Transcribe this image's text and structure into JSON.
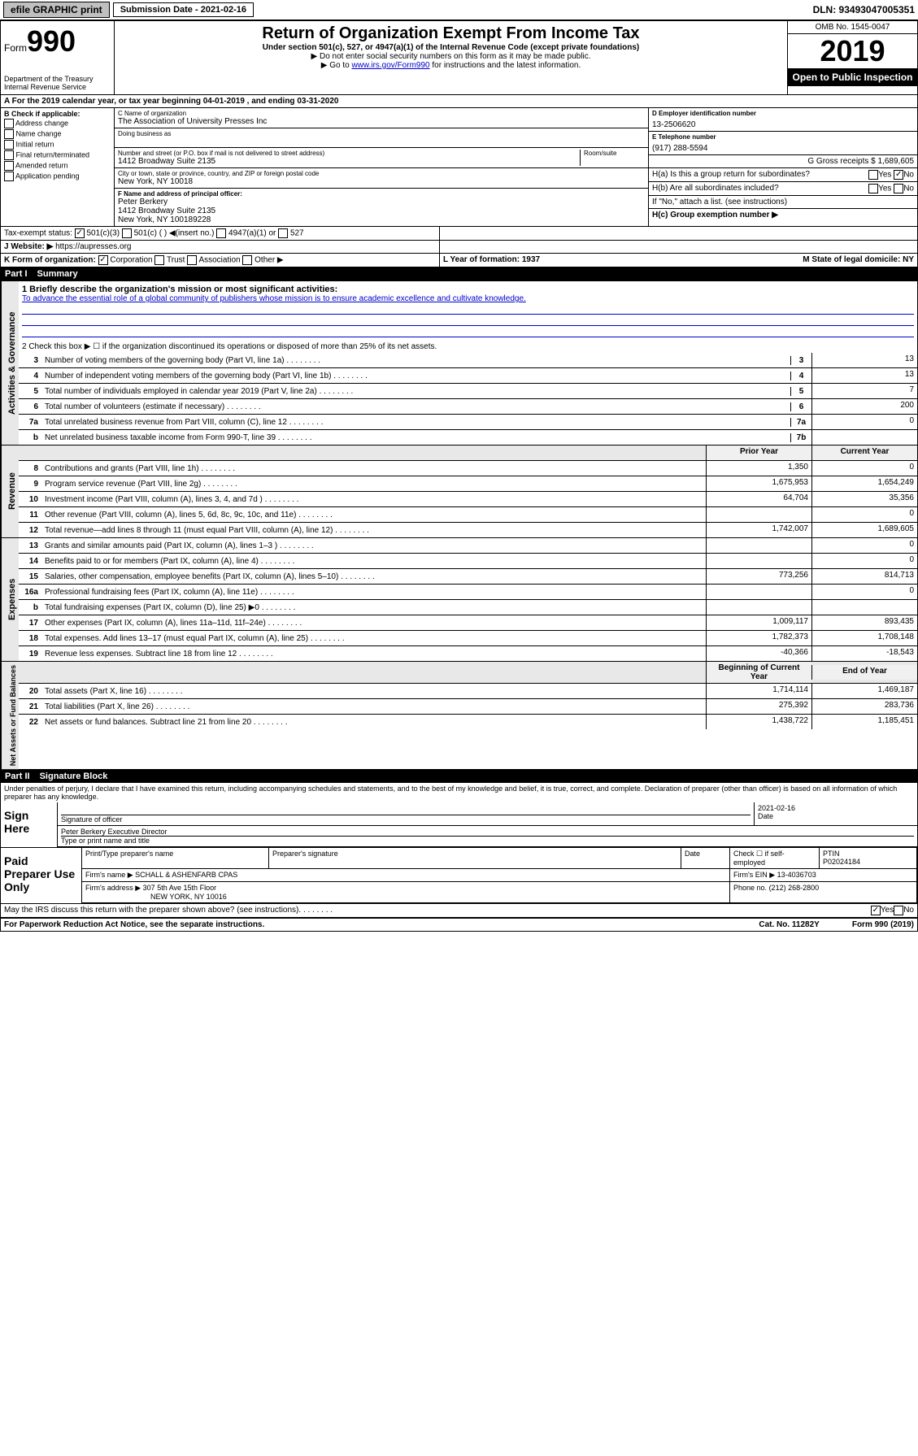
{
  "topbar": {
    "efile_label": "efile GRAPHIC print",
    "sub_date_label": "Submission Date - 2021-02-16",
    "dln": "DLN: 93493047005351"
  },
  "header": {
    "form_prefix": "Form",
    "form_number": "990",
    "title": "Return of Organization Exempt From Income Tax",
    "undersection": "Under section 501(c), 527, or 4947(a)(1) of the Internal Revenue Code (except private foundations)",
    "hint1": "▶ Do not enter social security numbers on this form as it may be made public.",
    "hint2_pre": "▶ Go to ",
    "hint2_link": "www.irs.gov/Form990",
    "hint2_post": " for instructions and the latest information.",
    "dept": "Department of the Treasury\nInternal Revenue Service",
    "omb": "OMB No. 1545-0047",
    "year": "2019",
    "open": "Open to Public Inspection"
  },
  "period": "A For the 2019 calendar year, or tax year beginning 04-01-2019    , and ending 03-31-2020",
  "checkif": {
    "label": "B Check if applicable:",
    "items": [
      "Address change",
      "Name change",
      "Initial return",
      "Final return/terminated",
      "Amended return",
      "Application pending"
    ]
  },
  "org": {
    "name_label": "C Name of organization",
    "name": "The Association of University Presses Inc",
    "dba_label": "Doing business as",
    "addr_label": "Number and street (or P.O. box if mail is not delivered to street address)",
    "room_label": "Room/suite",
    "addr": "1412 Broadway Suite 2135",
    "city_label": "City or town, state or province, country, and ZIP or foreign postal code",
    "city": "New York, NY  10018",
    "officer_label": "F Name and address of principal officer:",
    "officer_name": "Peter Berkery",
    "officer_addr": "1412 Broadway Suite 2135\nNew York, NY  100189228"
  },
  "right": {
    "ein_label": "D Employer identification number",
    "ein": "13-2506620",
    "phone_label": "E Telephone number",
    "phone": "(917) 288-5594",
    "gross_label": "G Gross receipts $ 1,689,605",
    "ha": "H(a)  Is this a group return for subordinates?",
    "hb": "H(b)  Are all subordinates included?",
    "hb_note": "If \"No,\" attach a list. (see instructions)",
    "hc": "H(c)  Group exemption number ▶"
  },
  "tax_status": {
    "label": "Tax-exempt status:",
    "opt1": "501(c)(3)",
    "opt2": "501(c) (  ) ◀(insert no.)",
    "opt3": "4947(a)(1) or",
    "opt4": "527"
  },
  "website": {
    "label": "J Website: ▶",
    "value": "https://aupresses.org"
  },
  "formorg": {
    "label": "K Form of organization:",
    "opts": [
      "Corporation",
      "Trust",
      "Association",
      "Other ▶"
    ],
    "year_label": "L Year of formation: 1937",
    "state_label": "M State of legal domicile: NY"
  },
  "part1": {
    "num": "Part I",
    "title": "Summary"
  },
  "mission": {
    "label": "1  Briefly describe the organization's mission or most significant activities:",
    "text": "To advance the essential role of a global community of publishers whose mission is to ensure academic excellence and cultivate knowledge."
  },
  "summary_rows": {
    "box2": "2   Check this box ▶ ☐  if the organization discontinued its operations or disposed of more than 25% of its net assets.",
    "governance": [
      {
        "n": "3",
        "text": "Number of voting members of the governing body (Part VI, line 1a)",
        "cell": "3",
        "val": "13"
      },
      {
        "n": "4",
        "text": "Number of independent voting members of the governing body (Part VI, line 1b)",
        "cell": "4",
        "val": "13"
      },
      {
        "n": "5",
        "text": "Total number of individuals employed in calendar year 2019 (Part V, line 2a)",
        "cell": "5",
        "val": "7"
      },
      {
        "n": "6",
        "text": "Total number of volunteers (estimate if necessary)",
        "cell": "6",
        "val": "200"
      },
      {
        "n": "7a",
        "text": "Total unrelated business revenue from Part VIII, column (C), line 12",
        "cell": "7a",
        "val": "0"
      },
      {
        "n": "b",
        "text": "Net unrelated business taxable income from Form 990-T, line 39",
        "cell": "7b",
        "val": ""
      }
    ],
    "col_head_prior": "Prior Year",
    "col_head_current": "Current Year",
    "revenue": [
      {
        "n": "8",
        "text": "Contributions and grants (Part VIII, line 1h)",
        "prior": "1,350",
        "curr": "0"
      },
      {
        "n": "9",
        "text": "Program service revenue (Part VIII, line 2g)",
        "prior": "1,675,953",
        "curr": "1,654,249"
      },
      {
        "n": "10",
        "text": "Investment income (Part VIII, column (A), lines 3, 4, and 7d )",
        "prior": "64,704",
        "curr": "35,356"
      },
      {
        "n": "11",
        "text": "Other revenue (Part VIII, column (A), lines 5, 6d, 8c, 9c, 10c, and 11e)",
        "prior": "",
        "curr": "0"
      },
      {
        "n": "12",
        "text": "Total revenue—add lines 8 through 11 (must equal Part VIII, column (A), line 12)",
        "prior": "1,742,007",
        "curr": "1,689,605"
      }
    ],
    "expenses": [
      {
        "n": "13",
        "text": "Grants and similar amounts paid (Part IX, column (A), lines 1–3 )",
        "prior": "",
        "curr": "0"
      },
      {
        "n": "14",
        "text": "Benefits paid to or for members (Part IX, column (A), line 4)",
        "prior": "",
        "curr": "0"
      },
      {
        "n": "15",
        "text": "Salaries, other compensation, employee benefits (Part IX, column (A), lines 5–10)",
        "prior": "773,256",
        "curr": "814,713"
      },
      {
        "n": "16a",
        "text": "Professional fundraising fees (Part IX, column (A), line 11e)",
        "prior": "",
        "curr": "0"
      },
      {
        "n": "b",
        "text": "Total fundraising expenses (Part IX, column (D), line 25) ▶0",
        "prior": "",
        "curr": ""
      },
      {
        "n": "17",
        "text": "Other expenses (Part IX, column (A), lines 11a–11d, 11f–24e)",
        "prior": "1,009,117",
        "curr": "893,435"
      },
      {
        "n": "18",
        "text": "Total expenses. Add lines 13–17 (must equal Part IX, column (A), line 25)",
        "prior": "1,782,373",
        "curr": "1,708,148"
      },
      {
        "n": "19",
        "text": "Revenue less expenses. Subtract line 18 from line 12",
        "prior": "-40,366",
        "curr": "-18,543"
      }
    ],
    "col_head_begin": "Beginning of Current Year",
    "col_head_end": "End of Year",
    "netassets": [
      {
        "n": "20",
        "text": "Total assets (Part X, line 16)",
        "prior": "1,714,114",
        "curr": "1,469,187"
      },
      {
        "n": "21",
        "text": "Total liabilities (Part X, line 26)",
        "prior": "275,392",
        "curr": "283,736"
      },
      {
        "n": "22",
        "text": "Net assets or fund balances. Subtract line 21 from line 20",
        "prior": "1,438,722",
        "curr": "1,185,451"
      }
    ]
  },
  "side_labels": {
    "gov": "Activities & Governance",
    "rev": "Revenue",
    "exp": "Expenses",
    "net": "Net Assets or Fund Balances"
  },
  "part2": {
    "num": "Part II",
    "title": "Signature Block"
  },
  "perjury": "Under penalties of perjury, I declare that I have examined this return, including accompanying schedules and statements, and to the best of my knowledge and belief, it is true, correct, and complete. Declaration of preparer (other than officer) is based on all information of which preparer has any knowledge.",
  "sign": {
    "here": "Sign Here",
    "sig_officer": "Signature of officer",
    "date_label": "Date",
    "date": "2021-02-16",
    "name": "Peter Berkery  Executive Director",
    "name_label": "Type or print name and title"
  },
  "paid": {
    "label": "Paid Preparer Use Only",
    "h1": "Print/Type preparer's name",
    "h2": "Preparer's signature",
    "h3": "Date",
    "h4_label": "Check ☐ if self-employed",
    "ptin_label": "PTIN",
    "ptin": "P02024184",
    "firm_name_label": "Firm's name    ▶",
    "firm_name": "SCHALL & ASHENFARB CPAS",
    "firm_ein_label": "Firm's EIN ▶",
    "firm_ein": "13-4036703",
    "firm_addr_label": "Firm's address ▶",
    "firm_addr": "307 5th Ave 15th Floor",
    "firm_city": "NEW YORK, NY  10016",
    "phone_label": "Phone no.",
    "phone": "(212) 268-2800"
  },
  "footer": {
    "discuss": "May the IRS discuss this return with the preparer shown above? (see instructions)",
    "paperwork": "For Paperwork Reduction Act Notice, see the separate instructions.",
    "cat": "Cat. No. 11282Y",
    "form": "Form 990 (2019)"
  }
}
